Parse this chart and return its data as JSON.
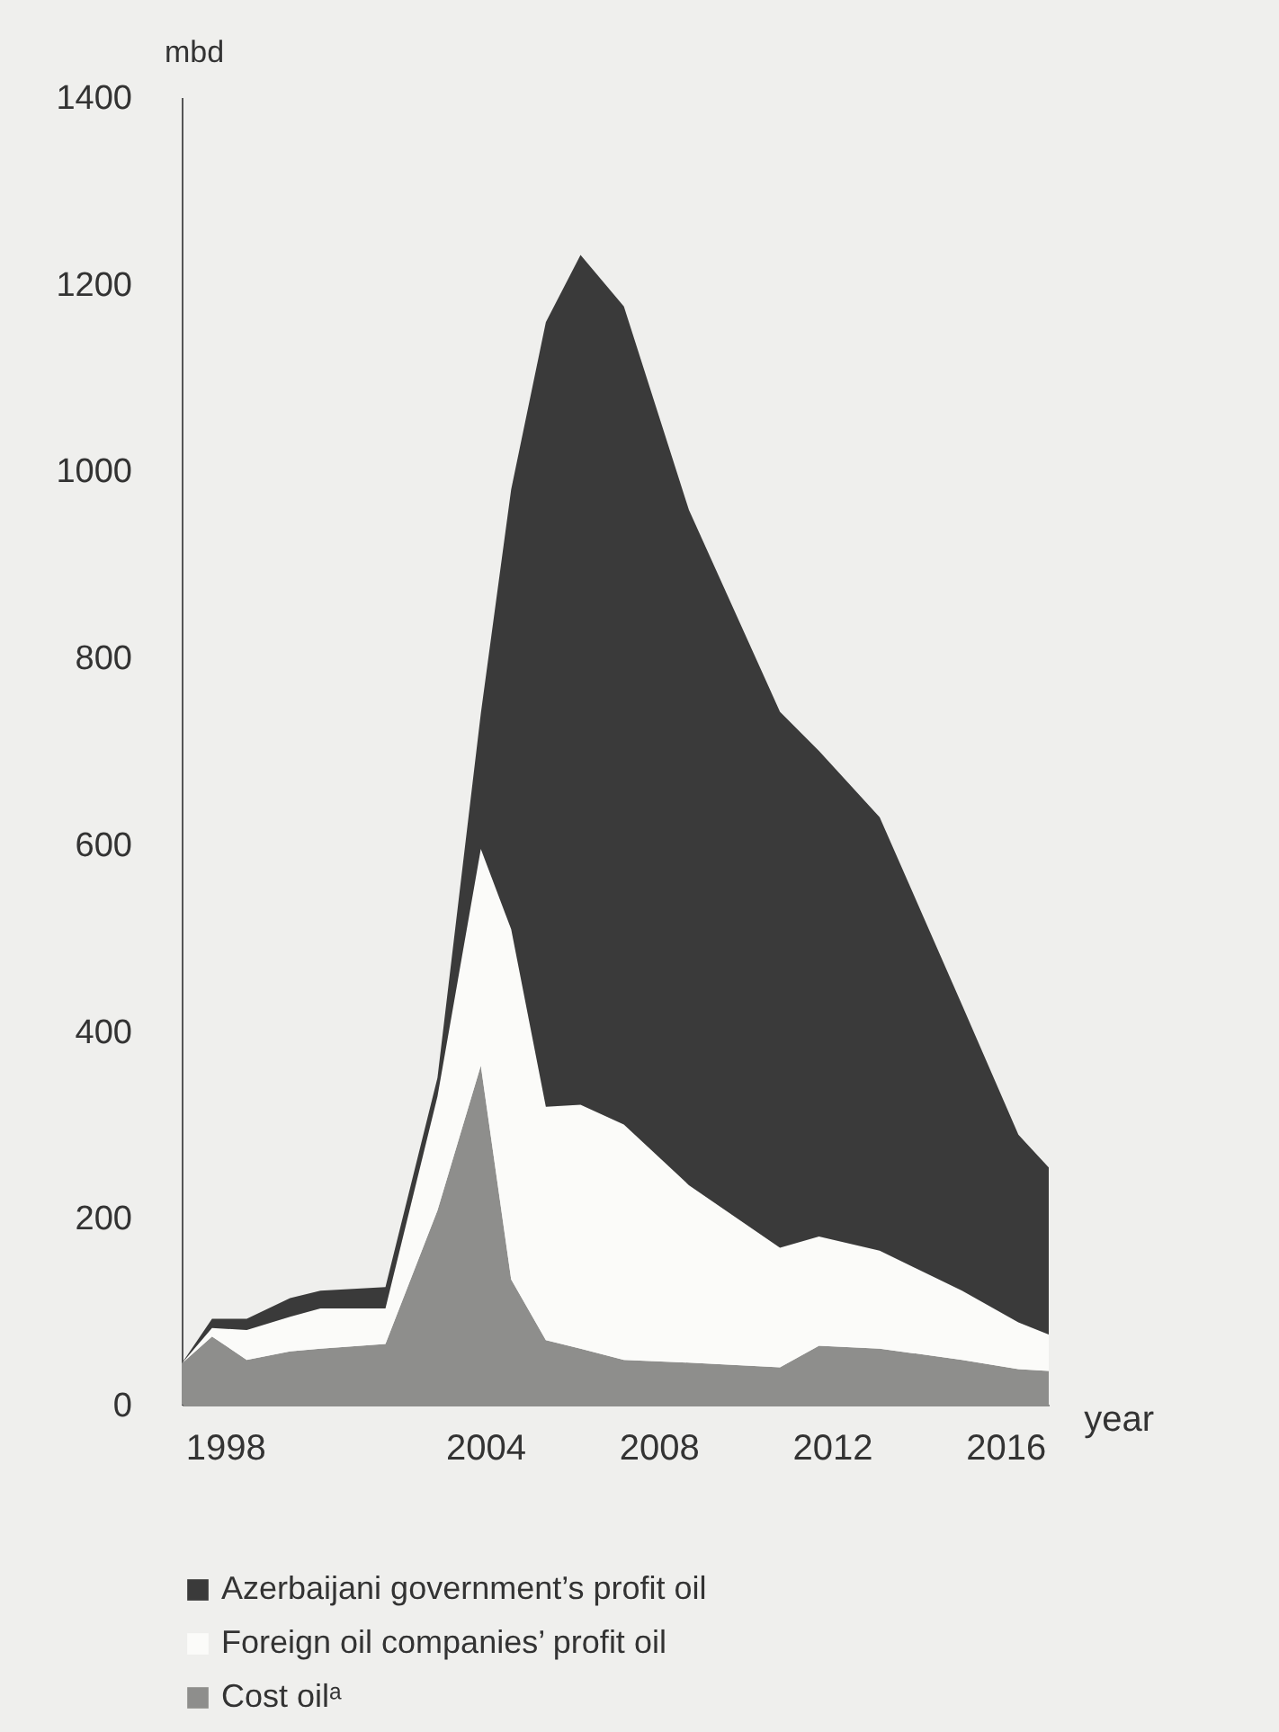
{
  "chart_data": {
    "type": "area",
    "stacked": true,
    "ylabel": "mbd",
    "xlabel": "year",
    "x": [
      1997.0,
      1997.7,
      1998.5,
      1999.5,
      2000.2,
      2001.7,
      2002.9,
      2003.9,
      2004.6,
      2005.4,
      2006.2,
      2007.2,
      2008.7,
      2010.8,
      2011.7,
      2013.1,
      2015.0,
      2016.3,
      2017.0
    ],
    "series": [
      {
        "name": "Cost oilᵃ",
        "color": "#8e8e8c",
        "values": [
          44,
          73,
          48,
          57,
          60,
          65,
          208,
          363,
          134,
          69,
          60,
          48,
          45,
          40,
          63,
          60,
          48,
          38,
          36
        ]
      },
      {
        "name": "Foreign oil companies’ profit oil",
        "color": "#fbfbf9",
        "values": [
          0,
          9,
          32,
          37,
          43,
          38,
          122,
          232,
          375,
          250,
          261,
          252,
          190,
          128,
          117,
          105,
          74,
          50,
          39
        ]
      },
      {
        "name": "Azerbaijani government’s profit oil",
        "color": "#3a3a3a",
        "values": [
          0,
          10,
          12,
          20,
          19,
          23,
          20,
          145,
          471,
          840,
          910,
          876,
          723,
          574,
          520,
          464,
          306,
          201,
          179
        ]
      }
    ],
    "xlim": [
      1997,
      2017
    ],
    "xticks": [
      1998,
      2004,
      2008,
      2012,
      2016
    ],
    "ylim": [
      0,
      1400
    ],
    "yticks": [
      0,
      200,
      400,
      600,
      800,
      1000,
      1200,
      1400
    ],
    "grid": false,
    "legend": "bottom"
  }
}
